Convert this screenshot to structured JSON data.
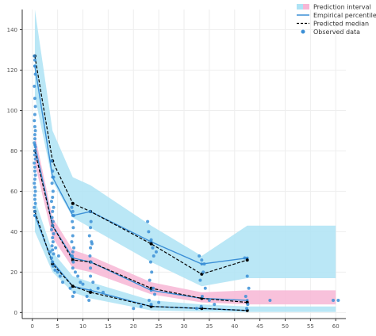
{
  "chart_data": {
    "type": "scatter",
    "title": "",
    "xlabel": "",
    "ylabel": "",
    "xlim": [
      -2,
      62
    ],
    "ylim": [
      -3,
      150
    ],
    "grid": true,
    "legend_position": "top-right",
    "x_ticks": [
      0,
      5,
      10,
      15,
      20,
      25,
      30,
      35,
      40,
      45,
      50,
      55,
      60
    ],
    "y_ticks": [
      0,
      20,
      40,
      60,
      80,
      100,
      120,
      140
    ],
    "colors": {
      "prediction_interval_outer": "#aee3f5",
      "prediction_interval_median": "#f7b6d5",
      "empirical_line": "#3b8fd6",
      "predicted_median": "#000000",
      "observed": "#3b8fd6",
      "grid": "#eeeeee",
      "axis": "#333333"
    },
    "legend": [
      {
        "key": "pi",
        "label": "Prediction interval"
      },
      {
        "key": "emp",
        "label": "Empirical percentile"
      },
      {
        "key": "pred",
        "label": "Predicted median"
      },
      {
        "key": "obs",
        "label": "Observed data"
      }
    ],
    "bands": [
      {
        "name": "upper",
        "color": "#aee3f5",
        "x": [
          0.5,
          4,
          8,
          11.5,
          23.5,
          33.5,
          42.5,
          60
        ],
        "lower": [
          107,
          65,
          47,
          42,
          25,
          13,
          17,
          17
        ],
        "upper": [
          150,
          90,
          67,
          63,
          43,
          28,
          43,
          43
        ]
      },
      {
        "name": "middle",
        "color": "#f7b6d5",
        "x": [
          0.5,
          4,
          8,
          11.5,
          23.5,
          33.5,
          42.5,
          60
        ],
        "lower": [
          74,
          37,
          22,
          20,
          9,
          5,
          4,
          4
        ],
        "upper": [
          88,
          47,
          31,
          28,
          15,
          10,
          11,
          11
        ]
      },
      {
        "name": "lower",
        "color": "#aee3f5",
        "x": [
          0.5,
          4,
          8,
          11.5,
          23.5,
          33.5,
          42.5,
          60
        ],
        "lower": [
          40,
          20,
          10,
          7,
          1,
          0.5,
          0.3,
          0.3
        ],
        "upper": [
          56,
          30,
          18,
          15,
          6,
          4,
          3,
          3
        ]
      }
    ],
    "empirical_percentiles": [
      {
        "name": "p90",
        "x": [
          0.5,
          4,
          8,
          11.5,
          23.5,
          33.5,
          42.5
        ],
        "y": [
          122,
          67,
          48,
          50,
          35,
          24,
          27
        ]
      },
      {
        "name": "p50",
        "x": [
          0.5,
          4,
          8,
          11.5,
          23.5,
          33.5,
          42.5
        ],
        "y": [
          83,
          43,
          27,
          25,
          11,
          7,
          6
        ]
      },
      {
        "name": "p10",
        "x": [
          0.5,
          4,
          8,
          11.5,
          23.5,
          33.5,
          42.5
        ],
        "y": [
          48,
          25,
          13,
          11,
          3,
          2,
          1
        ]
      }
    ],
    "predicted_median": [
      {
        "name": "p90",
        "x": [
          0.5,
          4,
          8,
          11.5,
          23.5,
          33.5,
          42.5
        ],
        "y": [
          127,
          75,
          54,
          50,
          34,
          19,
          26
        ]
      },
      {
        "name": "p50",
        "x": [
          0.5,
          4,
          8,
          11.5,
          23.5,
          33.5,
          42.5
        ],
        "y": [
          80,
          43,
          26,
          25,
          12,
          7,
          5
        ]
      },
      {
        "name": "p10",
        "x": [
          0.5,
          4,
          8,
          11.5,
          23.5,
          33.5,
          42.5
        ],
        "y": [
          50,
          24,
          13,
          10,
          3,
          2,
          1
        ]
      }
    ],
    "observed": {
      "x": [
        0.4,
        0.5,
        0.5,
        0.6,
        0.4,
        0.5,
        0.6,
        0.5,
        0.4,
        0.5,
        0.6,
        0.5,
        0.5,
        0.4,
        0.6,
        0.5,
        0.5,
        0.6,
        0.4,
        0.5,
        0.5,
        0.6,
        0.5,
        0.4,
        0.5,
        0.6,
        0.5,
        0.5,
        0.6,
        0.4,
        0.5,
        0.5,
        3.8,
        4.0,
        4.2,
        3.9,
        4.1,
        4.0,
        3.8,
        4.2,
        4.0,
        3.9,
        4.1,
        4.0,
        3.8,
        4.2,
        4.0,
        4.1,
        3.9,
        4.0,
        4.2,
        3.8,
        4.0,
        4.1,
        4.5,
        5.0,
        5.5,
        6.0,
        3.5,
        4.6,
        5.2,
        7.8,
        8.0,
        8.2,
        7.9,
        8.1,
        8.0,
        7.8,
        8.2,
        8.0,
        7.9,
        8.1,
        8.0,
        8.5,
        9.0,
        9.5,
        10.0,
        7.5,
        8.3,
        8.0,
        7.7,
        11.4,
        11.6,
        11.5,
        11.3,
        11.7,
        11.5,
        11.4,
        11.6,
        11.5,
        11.5,
        12.0,
        13.0,
        14.0,
        10.8,
        11.2,
        11.8,
        22.8,
        23.0,
        23.5,
        23.8,
        24.0,
        23.4,
        23.6,
        23.2,
        23.9,
        24.2,
        23.1,
        23.5,
        20.0,
        21.5,
        25.0,
        24.5,
        33.0,
        33.5,
        34.0,
        33.8,
        33.2,
        34.2,
        33.6,
        35.0,
        36.0,
        32.5,
        33.4,
        42.0,
        42.5,
        42.8,
        42.2,
        42.6,
        42.4,
        47.0,
        59.5,
        60.5
      ],
      "y": [
        127,
        125,
        122,
        118,
        112,
        106,
        102,
        98,
        95,
        92,
        90,
        88,
        86,
        84,
        82,
        80,
        78,
        76,
        74,
        72,
        70,
        68,
        66,
        64,
        62,
        60,
        58,
        56,
        54,
        52,
        50,
        48,
        75,
        70,
        67,
        64,
        60,
        57,
        55,
        52,
        50,
        47,
        45,
        43,
        41,
        39,
        37,
        35,
        33,
        31,
        29,
        27,
        25,
        23,
        21,
        20,
        18,
        15,
        30,
        32,
        28,
        52,
        50,
        48,
        45,
        42,
        38,
        35,
        32,
        30,
        28,
        25,
        22,
        20,
        18,
        15,
        14,
        12,
        10,
        8,
        28,
        50,
        45,
        42,
        38,
        35,
        32,
        28,
        25,
        22,
        18,
        15,
        12,
        10,
        8,
        6,
        34,
        45,
        40,
        36,
        32,
        28,
        25,
        20,
        16,
        12,
        9,
        6,
        4,
        2,
        3,
        5,
        30,
        28,
        26,
        24,
        20,
        16,
        12,
        8,
        6,
        4,
        2,
        3,
        27,
        18,
        12,
        8,
        4,
        2,
        6,
        6,
        6
      ]
    }
  }
}
